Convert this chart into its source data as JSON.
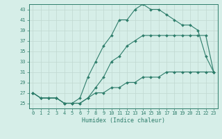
{
  "xlabel": "Humidex (Indice chaleur)",
  "x_hours": [
    0,
    1,
    2,
    3,
    4,
    5,
    6,
    7,
    8,
    9,
    10,
    11,
    12,
    13,
    14,
    15,
    16,
    17,
    18,
    19,
    20,
    21,
    22,
    23
  ],
  "line_max": [
    27,
    26,
    26,
    26,
    25,
    25,
    26,
    30,
    33,
    36,
    38,
    41,
    41,
    43,
    44,
    43,
    43,
    42,
    41,
    40,
    40,
    39,
    34,
    31
  ],
  "line_mean": [
    27,
    26,
    26,
    26,
    25,
    25,
    25,
    26,
    28,
    30,
    33,
    34,
    36,
    37,
    38,
    38,
    38,
    38,
    38,
    38,
    38,
    38,
    38,
    31
  ],
  "line_min": [
    27,
    26,
    26,
    26,
    25,
    25,
    25,
    26,
    27,
    27,
    28,
    28,
    29,
    29,
    30,
    30,
    30,
    31,
    31,
    31,
    31,
    31,
    31,
    31
  ],
  "color": "#2E7D6B",
  "bg_color": "#D6EEE8",
  "grid_color": "#C0D8D0",
  "ylim": [
    24,
    44
  ],
  "yticks": [
    25,
    27,
    29,
    31,
    33,
    35,
    37,
    39,
    41,
    43
  ],
  "xticks": [
    0,
    1,
    2,
    3,
    4,
    5,
    6,
    7,
    8,
    9,
    10,
    11,
    12,
    13,
    14,
    15,
    16,
    17,
    18,
    19,
    20,
    21,
    22,
    23
  ]
}
